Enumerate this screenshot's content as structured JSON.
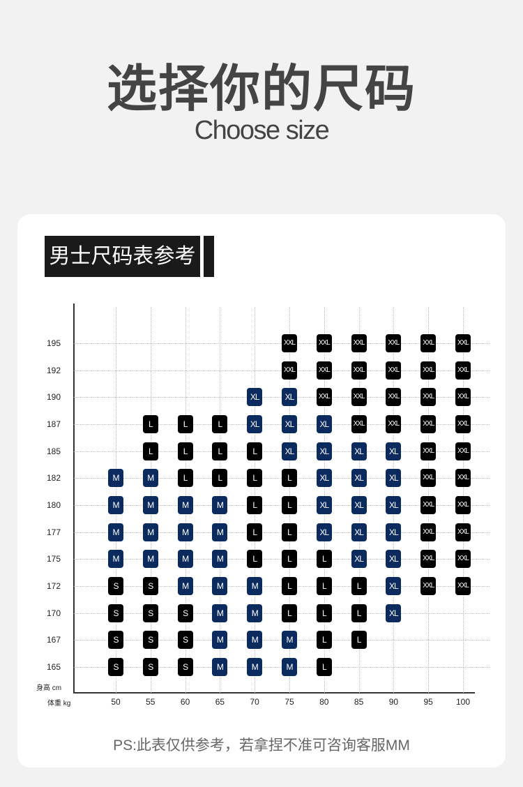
{
  "title": "选择你的尺码",
  "subtitle": "Choose size",
  "section_header": "男士尺码表参考",
  "footnote": "PS:此表仅供参考，若拿捏不准可咨询客服MM",
  "chart_data": {
    "type": "table",
    "ylabel": "身高 cm",
    "xlabel": "体重 kg",
    "x": [
      "50",
      "55",
      "60",
      "65",
      "70",
      "75",
      "80",
      "85",
      "90",
      "95",
      "100"
    ],
    "y": [
      "195",
      "192",
      "190",
      "187",
      "185",
      "182",
      "180",
      "177",
      "175",
      "172",
      "170",
      "167",
      "165"
    ],
    "grid": true,
    "size_colors": {
      "S": "#000000",
      "M": "#0b2a5e",
      "L": "#000000",
      "XL": "#0b2a5e",
      "XXL": "#000000"
    },
    "cells": [
      [
        "",
        "",
        "",
        "",
        "",
        "XXL",
        "XXL",
        "XXL",
        "XXL",
        "XXL",
        "XXL"
      ],
      [
        "",
        "",
        "",
        "",
        "",
        "XXL",
        "XXL",
        "XXL",
        "XXL",
        "XXL",
        "XXL"
      ],
      [
        "",
        "",
        "",
        "",
        "XL",
        "XL",
        "XXL",
        "XXL",
        "XXL",
        "XXL",
        "XXL"
      ],
      [
        "",
        "L",
        "L",
        "L",
        "XL",
        "XL",
        "XL",
        "XXL",
        "XXL",
        "XXL",
        "XXL"
      ],
      [
        "",
        "L",
        "L",
        "L",
        "L",
        "XL",
        "XL",
        "XL",
        "XL",
        "XXL",
        "XXL"
      ],
      [
        "M",
        "M",
        "L",
        "L",
        "L",
        "L",
        "XL",
        "XL",
        "XL",
        "XXL",
        "XXL"
      ],
      [
        "M",
        "M",
        "M",
        "M",
        "L",
        "L",
        "XL",
        "XL",
        "XL",
        "XXL",
        "XXL"
      ],
      [
        "M",
        "M",
        "M",
        "M",
        "L",
        "L",
        "XL",
        "XL",
        "XL",
        "XXL",
        "XXL"
      ],
      [
        "M",
        "M",
        "M",
        "M",
        "L",
        "L",
        "L",
        "XL",
        "XL",
        "XXL",
        "XXL"
      ],
      [
        "S",
        "S",
        "M",
        "M",
        "M",
        "L",
        "L",
        "L",
        "XL",
        "XXL",
        "XXL"
      ],
      [
        "S",
        "S",
        "S",
        "M",
        "M",
        "L",
        "L",
        "L",
        "XL",
        "",
        ""
      ],
      [
        "S",
        "S",
        "S",
        "M",
        "M",
        "M",
        "L",
        "L",
        "",
        "",
        ""
      ],
      [
        "S",
        "S",
        "S",
        "M",
        "M",
        "M",
        "L",
        "",
        "",
        "",
        ""
      ]
    ]
  }
}
